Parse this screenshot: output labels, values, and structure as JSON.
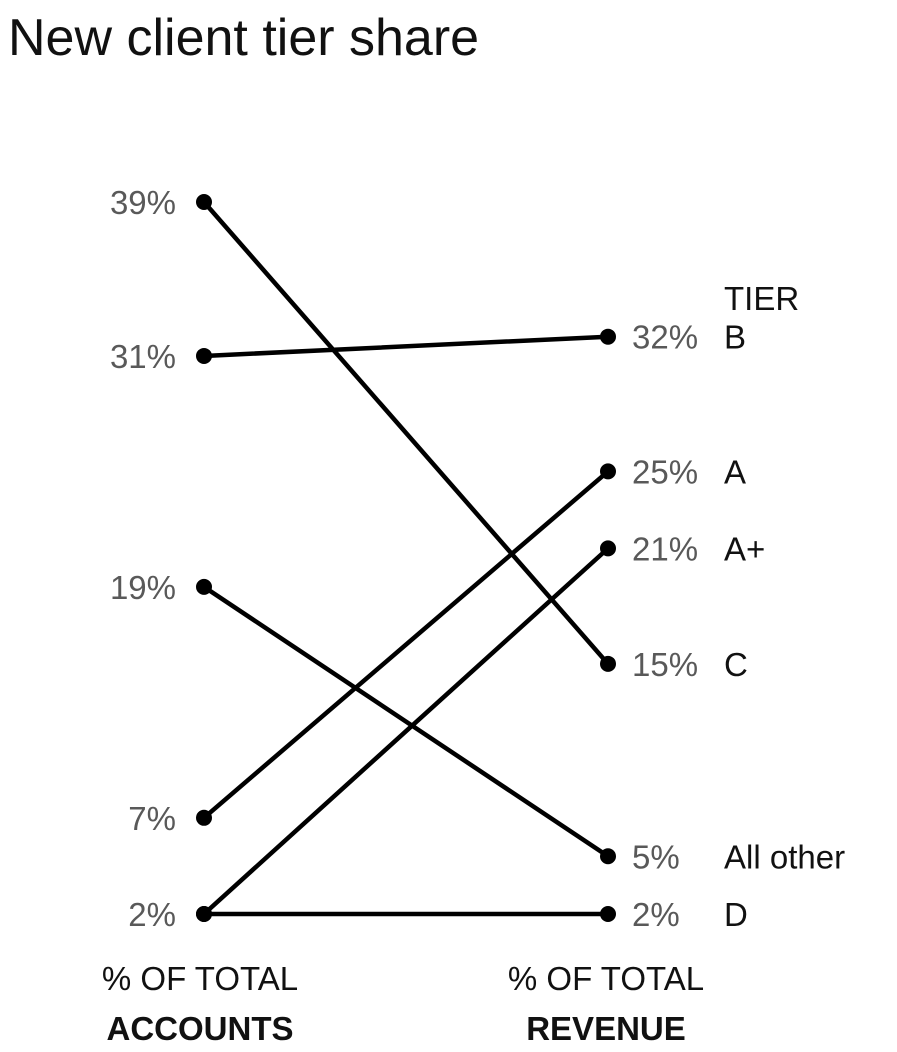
{
  "title": "New client tier share",
  "chart_data": {
    "type": "slope",
    "columns": [
      {
        "line1": "% OF TOTAL",
        "line2": "ACCOUNTS"
      },
      {
        "line1": "% OF TOTAL",
        "line2": "REVENUE"
      }
    ],
    "legend_heading": "TIER",
    "series": [
      {
        "name": "B",
        "accounts": 31,
        "revenue": 32,
        "accounts_label": "31%",
        "revenue_label": "32%"
      },
      {
        "name": "A",
        "accounts": 7,
        "revenue": 25,
        "accounts_label": "7%",
        "revenue_label": "25%"
      },
      {
        "name": "A+",
        "accounts": 2,
        "revenue": 21,
        "accounts_label": "2%",
        "revenue_label": "21%"
      },
      {
        "name": "C",
        "accounts": 39,
        "revenue": 15,
        "accounts_label": "39%",
        "revenue_label": "15%"
      },
      {
        "name": "All other",
        "accounts": 19,
        "revenue": 5,
        "accounts_label": "19%",
        "revenue_label": "5%"
      },
      {
        "name": "D",
        "accounts": 2,
        "revenue": 2,
        "accounts_label": "2%",
        "revenue_label": "2%"
      }
    ],
    "line_color": "#000000",
    "value_label_color": "#595959"
  }
}
